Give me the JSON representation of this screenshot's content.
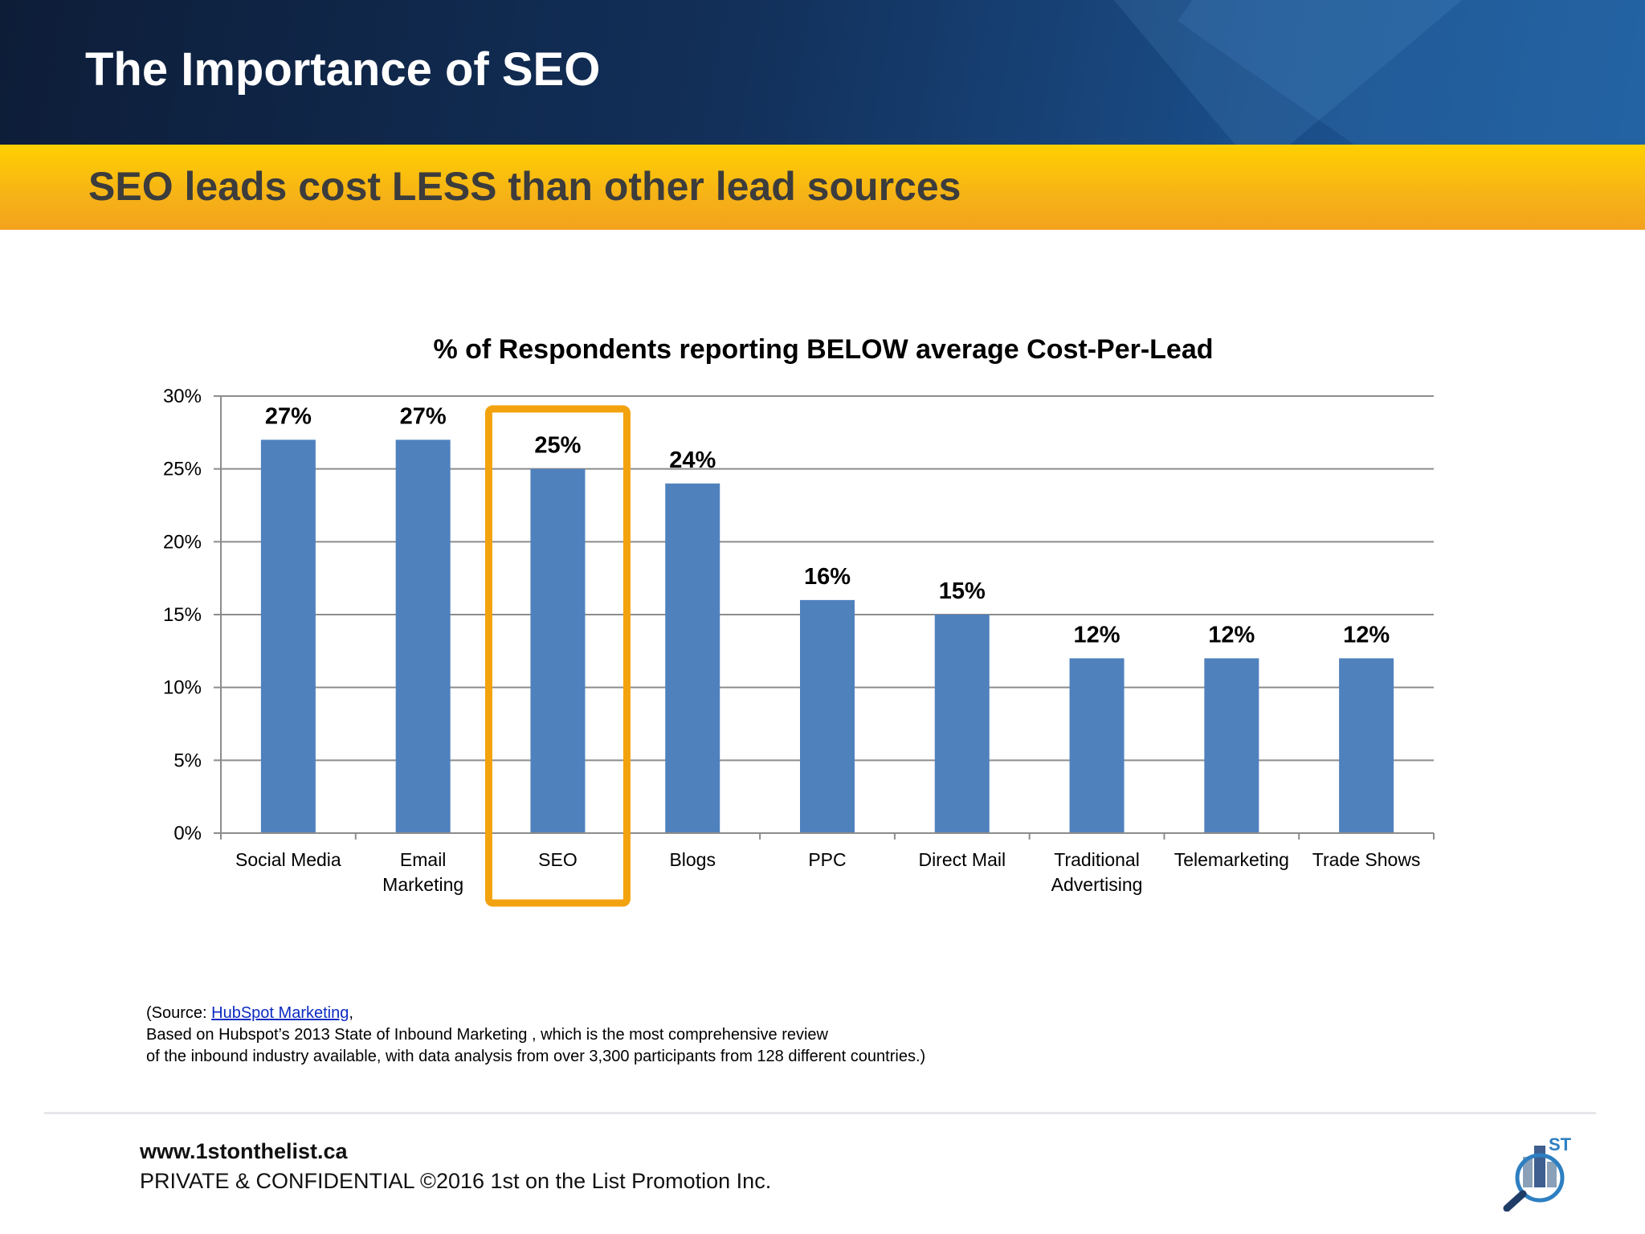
{
  "header": {
    "title": "The Importance of SEO"
  },
  "subheader": {
    "title": "SEO leads cost LESS than other lead sources"
  },
  "colors": {
    "bar": "#4f81bd",
    "highlight": "#f3a20f",
    "grid": "#8c8c8c"
  },
  "chart_data": {
    "type": "bar",
    "title": "% of Respondents reporting BELOW average Cost-Per-Lead",
    "categories": [
      [
        "Social Media"
      ],
      [
        "Email",
        "Marketing"
      ],
      [
        "SEO"
      ],
      [
        "Blogs"
      ],
      [
        "PPC"
      ],
      [
        "Direct Mail"
      ],
      [
        "Traditional",
        "Advertising"
      ],
      [
        "Telemarketing"
      ],
      [
        "Trade Shows"
      ]
    ],
    "values": [
      27,
      27,
      25,
      24,
      16,
      15,
      12,
      12,
      12
    ],
    "data_labels": [
      "27%",
      "27%",
      "25%",
      "24%",
      "16%",
      "15%",
      "12%",
      "12%",
      "12%"
    ],
    "ylim": [
      0,
      30
    ],
    "yticks": [
      0,
      5,
      10,
      15,
      20,
      25,
      30
    ],
    "ytick_labels": [
      "0%",
      "5%",
      "10%",
      "15%",
      "20%",
      "25%",
      "30%"
    ],
    "grid": true,
    "highlighted_category": "SEO"
  },
  "source": {
    "prefix": "(Source: ",
    "link_text": "HubSpot Marketing",
    "suffix": ",",
    "line2": "Based on Hubspot’s 2013 State of Inbound Marketing , which is the most comprehensive review",
    "line3": "of the inbound industry available, with data analysis from over 3,300 participants from 128 different countries.)"
  },
  "footer": {
    "url": "www.1stonthelist.ca",
    "copyright": "PRIVATE & CONFIDENTIAL ©2016 1st on the List Promotion Inc."
  },
  "logo": {
    "superscript": "ST",
    "icon": "magnifier-building-logo"
  }
}
